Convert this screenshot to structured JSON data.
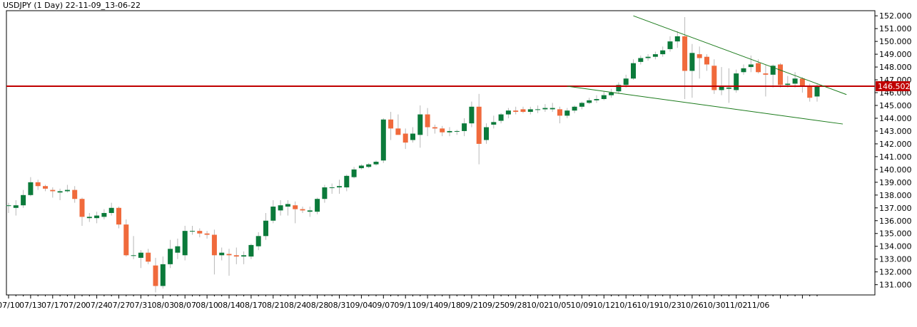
{
  "chart_data": {
    "type": "candlestick",
    "title": "USDJPY (1 Day) 22-11-09_13-06-22",
    "colors": {
      "bull": "#0b7a3a",
      "bear": "#f06a3c",
      "wick": "#b8b8b8",
      "level": "#c00000",
      "trend": "#1a7a1a",
      "axis": "#000000"
    },
    "ylim": [
      130.2,
      152.4
    ],
    "y_ticks": [
      "131.000",
      "132.000",
      "133.000",
      "134.000",
      "135.000",
      "136.000",
      "137.000",
      "138.000",
      "139.000",
      "140.000",
      "141.000",
      "142.000",
      "143.000",
      "144.000",
      "145.000",
      "146.000",
      "147.000",
      "148.000",
      "149.000",
      "150.000",
      "151.000",
      "152.000"
    ],
    "x_ticks": [
      "07/10",
      "07/13",
      "07/17",
      "07/20",
      "07/24",
      "07/27",
      "07/31",
      "08/03",
      "08/07",
      "08/10",
      "08/14",
      "08/17",
      "08/21",
      "08/24",
      "08/28",
      "08/31",
      "09/04",
      "09/07",
      "09/11",
      "09/14",
      "09/18",
      "09/21",
      "09/25",
      "09/28",
      "10/02",
      "10/05",
      "10/09",
      "10/12",
      "10/16",
      "10/19",
      "10/23",
      "10/26",
      "10/30",
      "11/02",
      "11/06"
    ],
    "level": {
      "value": 146.502,
      "label": "146.502"
    },
    "trendlines": [
      {
        "x1": 76,
        "y1": 146.5,
        "x2": 113.5,
        "y2": 143.55
      },
      {
        "x1": 85,
        "y1": 152.0,
        "x2": 114,
        "y2": 145.85
      }
    ],
    "candles": [
      {
        "o": 137.2,
        "h": 137.4,
        "l": 136.6,
        "c": 137.2
      },
      {
        "o": 137.0,
        "h": 137.6,
        "l": 136.4,
        "c": 137.2
      },
      {
        "o": 137.2,
        "h": 138.4,
        "l": 137.0,
        "c": 138.0
      },
      {
        "o": 138.0,
        "h": 139.4,
        "l": 137.9,
        "c": 139.0
      },
      {
        "o": 139.0,
        "h": 139.2,
        "l": 138.4,
        "c": 138.7
      },
      {
        "o": 138.7,
        "h": 138.8,
        "l": 138.3,
        "c": 138.5
      },
      {
        "o": 138.4,
        "h": 138.6,
        "l": 137.8,
        "c": 138.3
      },
      {
        "o": 138.2,
        "h": 138.5,
        "l": 137.6,
        "c": 138.3
      },
      {
        "o": 138.3,
        "h": 138.8,
        "l": 138.2,
        "c": 138.4
      },
      {
        "o": 138.4,
        "h": 138.7,
        "l": 137.4,
        "c": 137.7
      },
      {
        "o": 137.7,
        "h": 137.8,
        "l": 135.6,
        "c": 136.3
      },
      {
        "o": 136.2,
        "h": 136.6,
        "l": 135.9,
        "c": 136.3
      },
      {
        "o": 136.2,
        "h": 136.7,
        "l": 135.8,
        "c": 136.4
      },
      {
        "o": 136.3,
        "h": 136.9,
        "l": 136.1,
        "c": 136.6
      },
      {
        "o": 136.6,
        "h": 137.4,
        "l": 136.4,
        "c": 137.0
      },
      {
        "o": 137.0,
        "h": 137.1,
        "l": 135.4,
        "c": 135.7
      },
      {
        "o": 135.7,
        "h": 136.1,
        "l": 133.2,
        "c": 133.3
      },
      {
        "o": 133.3,
        "h": 134.8,
        "l": 133.0,
        "c": 133.3
      },
      {
        "o": 133.1,
        "h": 133.7,
        "l": 132.3,
        "c": 133.5
      },
      {
        "o": 133.5,
        "h": 133.8,
        "l": 132.6,
        "c": 132.8
      },
      {
        "o": 132.5,
        "h": 133.1,
        "l": 130.4,
        "c": 130.9
      },
      {
        "o": 130.9,
        "h": 133.2,
        "l": 130.7,
        "c": 132.6
      },
      {
        "o": 132.6,
        "h": 134.5,
        "l": 132.3,
        "c": 133.8
      },
      {
        "o": 133.5,
        "h": 134.6,
        "l": 133.0,
        "c": 134.0
      },
      {
        "o": 133.3,
        "h": 135.6,
        "l": 132.9,
        "c": 135.2
      },
      {
        "o": 135.2,
        "h": 135.6,
        "l": 134.9,
        "c": 135.2
      },
      {
        "o": 135.2,
        "h": 135.4,
        "l": 134.7,
        "c": 135.0
      },
      {
        "o": 135.0,
        "h": 135.2,
        "l": 134.6,
        "c": 134.9
      },
      {
        "o": 134.9,
        "h": 135.3,
        "l": 131.8,
        "c": 133.3
      },
      {
        "o": 133.3,
        "h": 133.9,
        "l": 132.9,
        "c": 133.5
      },
      {
        "o": 133.4,
        "h": 133.8,
        "l": 131.7,
        "c": 133.3
      },
      {
        "o": 133.3,
        "h": 133.9,
        "l": 132.6,
        "c": 133.2
      },
      {
        "o": 133.2,
        "h": 133.6,
        "l": 132.6,
        "c": 133.3
      },
      {
        "o": 133.2,
        "h": 134.2,
        "l": 133.0,
        "c": 134.1
      },
      {
        "o": 134.0,
        "h": 135.1,
        "l": 133.7,
        "c": 134.8
      },
      {
        "o": 134.8,
        "h": 136.6,
        "l": 134.5,
        "c": 136.0
      },
      {
        "o": 136.0,
        "h": 137.6,
        "l": 135.8,
        "c": 137.1
      },
      {
        "o": 136.8,
        "h": 137.6,
        "l": 136.4,
        "c": 137.2
      },
      {
        "o": 137.1,
        "h": 137.6,
        "l": 136.4,
        "c": 137.3
      },
      {
        "o": 137.2,
        "h": 137.5,
        "l": 135.8,
        "c": 136.9
      },
      {
        "o": 136.9,
        "h": 137.1,
        "l": 136.6,
        "c": 136.8
      },
      {
        "o": 136.7,
        "h": 137.1,
        "l": 136.3,
        "c": 136.8
      },
      {
        "o": 136.7,
        "h": 137.8,
        "l": 136.5,
        "c": 137.7
      },
      {
        "o": 137.7,
        "h": 138.8,
        "l": 137.4,
        "c": 138.6
      },
      {
        "o": 138.6,
        "h": 138.9,
        "l": 138.1,
        "c": 138.6
      },
      {
        "o": 138.6,
        "h": 139.2,
        "l": 138.1,
        "c": 138.7
      },
      {
        "o": 138.6,
        "h": 139.6,
        "l": 138.3,
        "c": 139.5
      },
      {
        "o": 139.4,
        "h": 140.2,
        "l": 139.3,
        "c": 140.0
      },
      {
        "o": 140.1,
        "h": 140.4,
        "l": 140.0,
        "c": 140.3
      },
      {
        "o": 140.2,
        "h": 140.5,
        "l": 140.1,
        "c": 140.4
      },
      {
        "o": 140.4,
        "h": 140.7,
        "l": 140.3,
        "c": 140.6
      },
      {
        "o": 140.7,
        "h": 144.0,
        "l": 140.5,
        "c": 143.9
      },
      {
        "o": 143.9,
        "h": 144.5,
        "l": 142.3,
        "c": 143.2
      },
      {
        "o": 143.2,
        "h": 144.3,
        "l": 142.8,
        "c": 142.7
      },
      {
        "o": 142.8,
        "h": 143.2,
        "l": 141.6,
        "c": 142.1
      },
      {
        "o": 142.3,
        "h": 143.3,
        "l": 142.1,
        "c": 142.8
      },
      {
        "o": 142.7,
        "h": 145.0,
        "l": 141.7,
        "c": 144.3
      },
      {
        "o": 144.3,
        "h": 144.8,
        "l": 142.6,
        "c": 143.3
      },
      {
        "o": 143.3,
        "h": 143.5,
        "l": 142.8,
        "c": 143.2
      },
      {
        "o": 143.2,
        "h": 143.4,
        "l": 142.6,
        "c": 142.9
      },
      {
        "o": 142.9,
        "h": 143.3,
        "l": 142.6,
        "c": 143.0
      },
      {
        "o": 143.0,
        "h": 143.1,
        "l": 142.7,
        "c": 143.0
      },
      {
        "o": 143.0,
        "h": 144.0,
        "l": 142.6,
        "c": 143.6
      },
      {
        "o": 143.6,
        "h": 145.3,
        "l": 143.3,
        "c": 144.9
      },
      {
        "o": 144.9,
        "h": 145.9,
        "l": 140.4,
        "c": 142.0
      },
      {
        "o": 142.3,
        "h": 143.6,
        "l": 142.0,
        "c": 143.3
      },
      {
        "o": 143.5,
        "h": 144.2,
        "l": 143.2,
        "c": 143.7
      },
      {
        "o": 143.8,
        "h": 144.4,
        "l": 143.6,
        "c": 144.3
      },
      {
        "o": 144.3,
        "h": 144.8,
        "l": 144.0,
        "c": 144.6
      },
      {
        "o": 144.6,
        "h": 144.9,
        "l": 144.3,
        "c": 144.5
      },
      {
        "o": 144.7,
        "h": 144.9,
        "l": 144.4,
        "c": 144.5
      },
      {
        "o": 144.5,
        "h": 144.9,
        "l": 144.3,
        "c": 144.7
      },
      {
        "o": 144.7,
        "h": 145.0,
        "l": 144.4,
        "c": 144.7
      },
      {
        "o": 144.7,
        "h": 145.1,
        "l": 144.5,
        "c": 144.8
      },
      {
        "o": 144.7,
        "h": 145.2,
        "l": 144.5,
        "c": 144.8
      },
      {
        "o": 144.7,
        "h": 144.9,
        "l": 143.6,
        "c": 144.2
      },
      {
        "o": 144.2,
        "h": 144.8,
        "l": 144.0,
        "c": 144.6
      },
      {
        "o": 144.6,
        "h": 145.0,
        "l": 144.4,
        "c": 144.9
      },
      {
        "o": 144.9,
        "h": 145.3,
        "l": 144.7,
        "c": 145.2
      },
      {
        "o": 145.2,
        "h": 145.6,
        "l": 145.1,
        "c": 145.4
      },
      {
        "o": 145.4,
        "h": 145.8,
        "l": 145.2,
        "c": 145.5
      },
      {
        "o": 145.5,
        "h": 146.1,
        "l": 145.4,
        "c": 145.8
      },
      {
        "o": 145.8,
        "h": 146.3,
        "l": 145.6,
        "c": 146.0
      },
      {
        "o": 146.1,
        "h": 146.8,
        "l": 145.9,
        "c": 146.6
      },
      {
        "o": 146.6,
        "h": 147.4,
        "l": 146.4,
        "c": 147.1
      },
      {
        "o": 147.1,
        "h": 148.6,
        "l": 147.0,
        "c": 148.3
      },
      {
        "o": 148.4,
        "h": 148.9,
        "l": 148.2,
        "c": 148.7
      },
      {
        "o": 148.7,
        "h": 149.0,
        "l": 148.5,
        "c": 148.8
      },
      {
        "o": 148.8,
        "h": 149.2,
        "l": 148.6,
        "c": 149.0
      },
      {
        "o": 149.0,
        "h": 149.6,
        "l": 148.8,
        "c": 149.3
      },
      {
        "o": 149.4,
        "h": 150.4,
        "l": 149.2,
        "c": 150.0
      },
      {
        "o": 150.0,
        "h": 150.8,
        "l": 149.5,
        "c": 150.4
      },
      {
        "o": 150.4,
        "h": 151.9,
        "l": 145.5,
        "c": 147.7
      },
      {
        "o": 147.7,
        "h": 149.8,
        "l": 145.6,
        "c": 149.1
      },
      {
        "o": 149.0,
        "h": 149.6,
        "l": 147.1,
        "c": 148.7
      },
      {
        "o": 148.8,
        "h": 149.0,
        "l": 147.7,
        "c": 148.2
      },
      {
        "o": 148.1,
        "h": 148.6,
        "l": 145.9,
        "c": 146.2
      },
      {
        "o": 146.2,
        "h": 148.0,
        "l": 145.8,
        "c": 146.5
      },
      {
        "o": 146.3,
        "h": 147.9,
        "l": 145.2,
        "c": 146.4
      },
      {
        "o": 146.2,
        "h": 147.8,
        "l": 146.0,
        "c": 147.5
      },
      {
        "o": 147.6,
        "h": 148.2,
        "l": 147.4,
        "c": 147.9
      },
      {
        "o": 148.0,
        "h": 148.9,
        "l": 147.6,
        "c": 148.2
      },
      {
        "o": 148.3,
        "h": 148.6,
        "l": 147.5,
        "c": 147.6
      },
      {
        "o": 147.5,
        "h": 148.2,
        "l": 145.7,
        "c": 147.4
      },
      {
        "o": 147.4,
        "h": 148.2,
        "l": 146.4,
        "c": 148.1
      },
      {
        "o": 148.2,
        "h": 148.3,
        "l": 146.4,
        "c": 146.6
      },
      {
        "o": 146.6,
        "h": 147.3,
        "l": 146.4,
        "c": 146.7
      },
      {
        "o": 146.7,
        "h": 147.6,
        "l": 146.4,
        "c": 147.1
      },
      {
        "o": 147.1,
        "h": 147.2,
        "l": 146.0,
        "c": 146.5
      },
      {
        "o": 146.5,
        "h": 146.7,
        "l": 145.3,
        "c": 145.6
      },
      {
        "o": 145.7,
        "h": 146.7,
        "l": 145.3,
        "c": 146.5
      }
    ]
  }
}
